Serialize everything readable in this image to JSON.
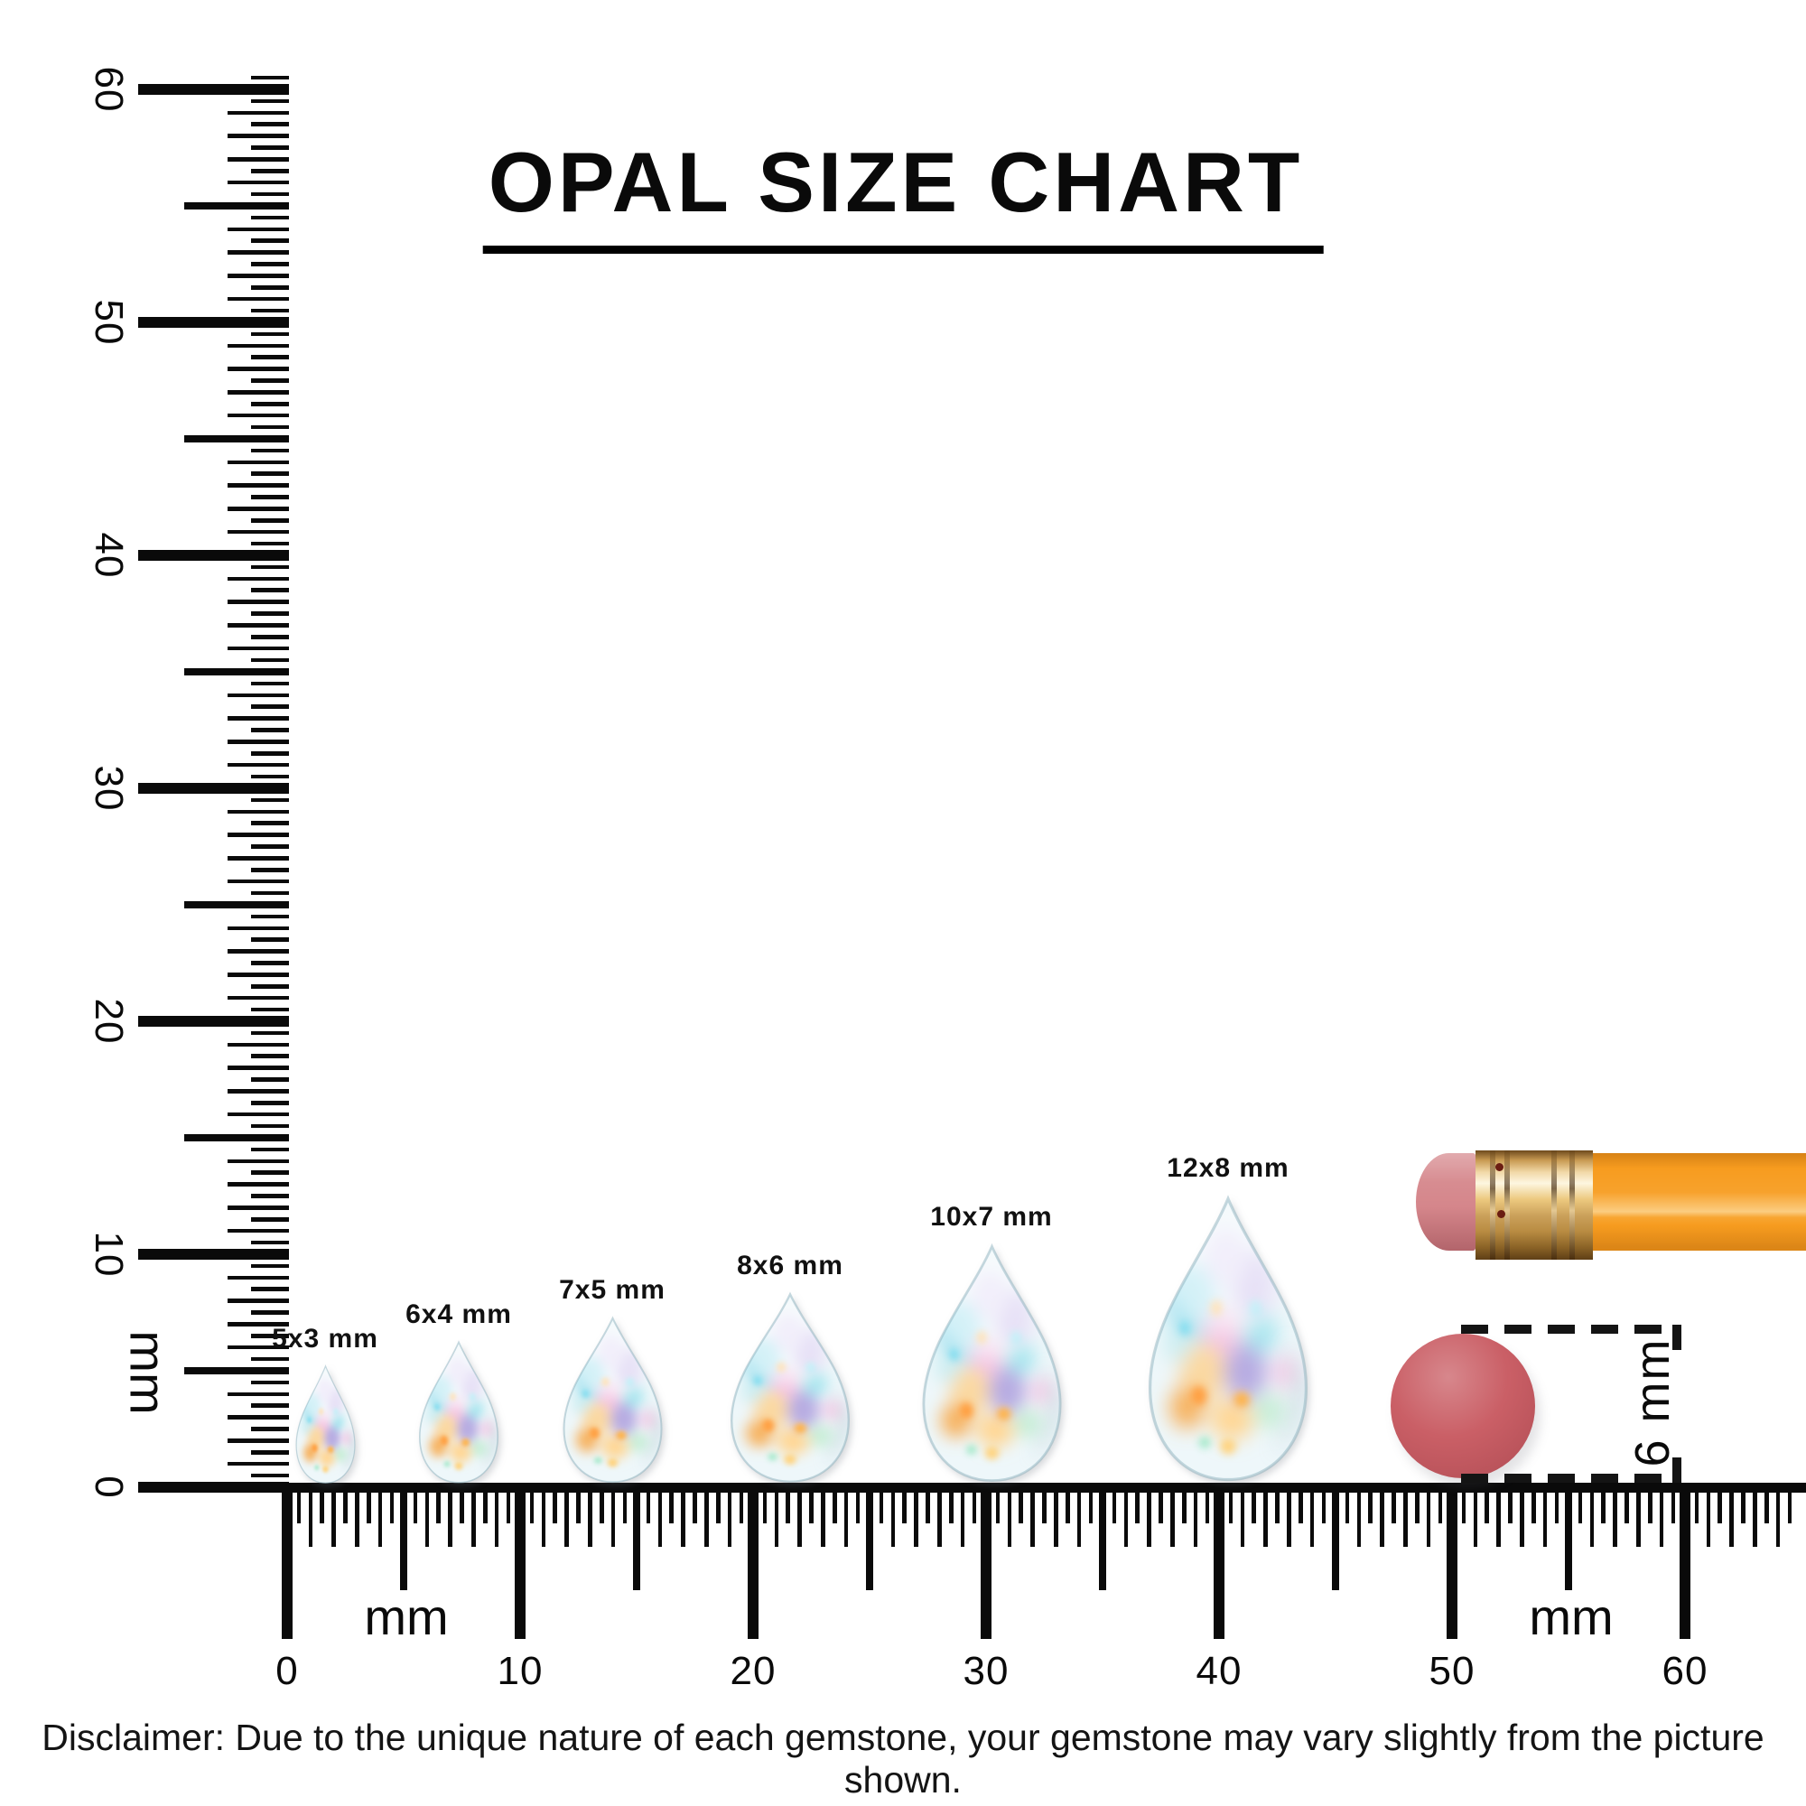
{
  "title": "OPAL SIZE CHART",
  "opals": [
    {
      "label": "5x3 mm",
      "width_mm": 3,
      "height_mm": 5
    },
    {
      "label": "6x4 mm",
      "width_mm": 4,
      "height_mm": 6
    },
    {
      "label": "7x5 mm",
      "width_mm": 5,
      "height_mm": 7
    },
    {
      "label": "8x6 mm",
      "width_mm": 6,
      "height_mm": 8
    },
    {
      "label": "10x7 mm",
      "width_mm": 7,
      "height_mm": 10
    },
    {
      "label": "12x8 mm",
      "width_mm": 8,
      "height_mm": 12
    }
  ],
  "rulers": {
    "unit_label": "mm",
    "vertical": {
      "min_mm": 0,
      "max_mm": 60,
      "major_labels": [
        "0",
        "10",
        "20",
        "30",
        "40",
        "50",
        "60"
      ]
    },
    "horizontal": {
      "min_mm": 0,
      "max_mm": 60,
      "major_labels": [
        "0",
        "10",
        "20",
        "30",
        "40",
        "50",
        "60"
      ]
    }
  },
  "reference_objects": {
    "pencil": {
      "name": "pencil eraser end"
    },
    "circle": {
      "label": "6 mm",
      "diameter_mm": 6
    }
  },
  "colors": {
    "ink": "#0a0a0a",
    "pencil_body": "#f79c1f",
    "pencil_eraser": "#d5868b",
    "pencil_ferrule_gold": "#dcb26a",
    "reference_circle": "#ca5f66",
    "opal_palette": [
      "#a9e3f0",
      "#cfc3ed",
      "#f4c6e4",
      "#fbd9a2",
      "#f7b25e",
      "#b7ace2",
      "#c6eed6",
      "#ffd795"
    ]
  },
  "disclaimer": "Disclaimer: Due to the unique nature of each gemstone, your gemstone may vary slightly from the picture shown."
}
